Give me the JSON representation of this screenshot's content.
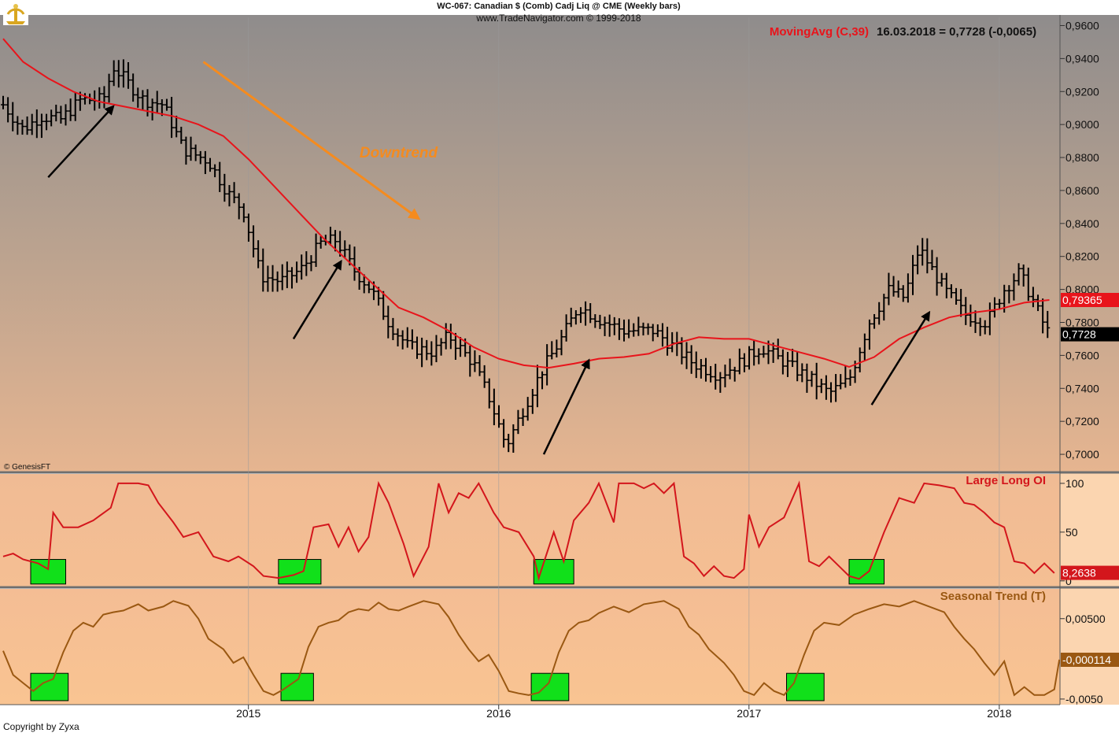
{
  "header": {
    "title": "WC-067:  Canadian $ (Comb) Cadj Liq @ CME  (Weekly bars)",
    "source": "www.TradeNavigator.com © 1999-2018"
  },
  "footer": {
    "copyright": "Copyright by Zyxa",
    "genesis": "© GenesisFT"
  },
  "colors": {
    "price_bars": "#000000",
    "moving_avg": "#e8141b",
    "large_long_oi": "#d3161c",
    "seasonal": "#9a5812",
    "highlight": "#11e01a",
    "arrows_black": "#000000",
    "downtrend": "#f58b1e"
  },
  "chart_data": [
    {
      "type": "ohlc-weekly",
      "panel": "price",
      "title": "MovingAvg (C,39)",
      "quote": "16.03.2018 = 0,7728 (-0,0065)",
      "ylim": [
        0.69,
        0.965
      ],
      "yticks": [
        "0,9600",
        "0,9400",
        "0,9200",
        "0,9000",
        "0,8800",
        "0,8600",
        "0,8400",
        "0,8200",
        "0,8000",
        "0,7800",
        "0,7600",
        "0,7400",
        "0,7200",
        "0,7000"
      ],
      "ytick_values": [
        0.96,
        0.94,
        0.92,
        0.9,
        0.88,
        0.86,
        0.84,
        0.82,
        0.8,
        0.78,
        0.76,
        0.74,
        0.72,
        0.7
      ],
      "x_labels": [
        "2015",
        "2016",
        "2017",
        "2018"
      ],
      "x_label_dates": [
        2015.0,
        2016.0,
        2017.0,
        2018.0
      ],
      "x_range": [
        2014.02,
        2018.23
      ],
      "last_close_label": "0,7728",
      "ma_label": "0,79365",
      "closes_anchor": [
        [
          2014.02,
          0.912
        ],
        [
          2014.1,
          0.897
        ],
        [
          2014.17,
          0.905
        ],
        [
          2014.25,
          0.903
        ],
        [
          2014.33,
          0.915
        ],
        [
          2014.42,
          0.915
        ],
        [
          2014.46,
          0.935
        ],
        [
          2014.52,
          0.925
        ],
        [
          2014.58,
          0.915
        ],
        [
          2014.66,
          0.912
        ],
        [
          2014.74,
          0.885
        ],
        [
          2014.84,
          0.878
        ],
        [
          2014.92,
          0.858
        ],
        [
          2014.98,
          0.848
        ],
        [
          2015.05,
          0.808
        ],
        [
          2015.13,
          0.805
        ],
        [
          2015.21,
          0.812
        ],
        [
          2015.29,
          0.828
        ],
        [
          2015.35,
          0.83
        ],
        [
          2015.42,
          0.812
        ],
        [
          2015.49,
          0.8
        ],
        [
          2015.56,
          0.78
        ],
        [
          2015.64,
          0.765
        ],
        [
          2015.74,
          0.762
        ],
        [
          2015.8,
          0.772
        ],
        [
          2015.9,
          0.755
        ],
        [
          2015.96,
          0.735
        ],
        [
          2016.03,
          0.705
        ],
        [
          2016.1,
          0.728
        ],
        [
          2016.17,
          0.75
        ],
        [
          2016.25,
          0.77
        ],
        [
          2016.32,
          0.79
        ],
        [
          2016.4,
          0.782
        ],
        [
          2016.5,
          0.775
        ],
        [
          2016.62,
          0.775
        ],
        [
          2016.7,
          0.765
        ],
        [
          2016.78,
          0.755
        ],
        [
          2016.88,
          0.748
        ],
        [
          2016.96,
          0.755
        ],
        [
          2017.05,
          0.765
        ],
        [
          2017.15,
          0.755
        ],
        [
          2017.25,
          0.745
        ],
        [
          2017.32,
          0.737
        ],
        [
          2017.4,
          0.745
        ],
        [
          2017.48,
          0.78
        ],
        [
          2017.56,
          0.8
        ],
        [
          2017.62,
          0.795
        ],
        [
          2017.68,
          0.825
        ],
        [
          2017.78,
          0.8
        ],
        [
          2017.86,
          0.785
        ],
        [
          2017.95,
          0.78
        ],
        [
          2018.02,
          0.8
        ],
        [
          2018.08,
          0.81
        ],
        [
          2018.13,
          0.795
        ],
        [
          2018.18,
          0.778
        ],
        [
          2018.2,
          0.7728
        ]
      ],
      "moving_average": [
        [
          2014.02,
          0.952
        ],
        [
          2014.1,
          0.938
        ],
        [
          2014.2,
          0.928
        ],
        [
          2014.3,
          0.92
        ],
        [
          2014.4,
          0.914
        ],
        [
          2014.5,
          0.911
        ],
        [
          2014.6,
          0.908
        ],
        [
          2014.7,
          0.905
        ],
        [
          2014.8,
          0.9
        ],
        [
          2014.9,
          0.893
        ],
        [
          2015.0,
          0.879
        ],
        [
          2015.1,
          0.863
        ],
        [
          2015.2,
          0.847
        ],
        [
          2015.3,
          0.831
        ],
        [
          2015.4,
          0.817
        ],
        [
          2015.5,
          0.803
        ],
        [
          2015.6,
          0.789
        ],
        [
          2015.7,
          0.783
        ],
        [
          2015.8,
          0.775
        ],
        [
          2015.9,
          0.765
        ],
        [
          2016.0,
          0.758
        ],
        [
          2016.1,
          0.754
        ],
        [
          2016.2,
          0.7525
        ],
        [
          2016.3,
          0.755
        ],
        [
          2016.4,
          0.758
        ],
        [
          2016.5,
          0.759
        ],
        [
          2016.6,
          0.761
        ],
        [
          2016.7,
          0.767
        ],
        [
          2016.8,
          0.771
        ],
        [
          2016.9,
          0.77
        ],
        [
          2017.0,
          0.77
        ],
        [
          2017.1,
          0.766
        ],
        [
          2017.2,
          0.762
        ],
        [
          2017.3,
          0.758
        ],
        [
          2017.4,
          0.753
        ],
        [
          2017.5,
          0.759
        ],
        [
          2017.6,
          0.77
        ],
        [
          2017.7,
          0.777
        ],
        [
          2017.8,
          0.783
        ],
        [
          2017.9,
          0.786
        ],
        [
          2018.0,
          0.788
        ],
        [
          2018.1,
          0.792
        ],
        [
          2018.2,
          0.7936
        ]
      ],
      "annotations": [
        {
          "text": "Downtrend",
          "color": "downtrend",
          "x": 2015.6,
          "y": 0.88
        },
        {
          "type": "arrow",
          "color": "downtrend",
          "from": [
            2014.82,
            0.938
          ],
          "to": [
            2015.68,
            0.843
          ]
        },
        {
          "type": "arrow",
          "color": "arrows_black",
          "from": [
            2014.2,
            0.868
          ],
          "to": [
            2014.46,
            0.911
          ]
        },
        {
          "type": "arrow",
          "color": "arrows_black",
          "from": [
            2015.18,
            0.77
          ],
          "to": [
            2015.37,
            0.817
          ]
        },
        {
          "type": "arrow",
          "color": "arrows_black",
          "from": [
            2016.18,
            0.7
          ],
          "to": [
            2016.36,
            0.757
          ]
        },
        {
          "type": "arrow",
          "color": "arrows_black",
          "from": [
            2017.49,
            0.73
          ],
          "to": [
            2017.72,
            0.786
          ]
        }
      ]
    },
    {
      "type": "line",
      "panel": "large_long_oi",
      "title": "Large Long OI",
      "ylim": [
        -5,
        108
      ],
      "yticks": [
        "100",
        "50",
        "0"
      ],
      "ytick_values": [
        100,
        50,
        0
      ],
      "last_value_label": "8,2638",
      "series": [
        [
          2014.02,
          25
        ],
        [
          2014.06,
          28
        ],
        [
          2014.1,
          22
        ],
        [
          2014.16,
          18
        ],
        [
          2014.2,
          12
        ],
        [
          2014.22,
          70
        ],
        [
          2014.26,
          55
        ],
        [
          2014.32,
          55
        ],
        [
          2014.38,
          62
        ],
        [
          2014.45,
          75
        ],
        [
          2014.48,
          100
        ],
        [
          2014.56,
          100
        ],
        [
          2014.6,
          98
        ],
        [
          2014.64,
          80
        ],
        [
          2014.7,
          60
        ],
        [
          2014.74,
          45
        ],
        [
          2014.8,
          50
        ],
        [
          2014.86,
          25
        ],
        [
          2014.92,
          20
        ],
        [
          2014.96,
          25
        ],
        [
          2015.02,
          15
        ],
        [
          2015.06,
          5
        ],
        [
          2015.12,
          3
        ],
        [
          2015.18,
          6
        ],
        [
          2015.22,
          10
        ],
        [
          2015.26,
          55
        ],
        [
          2015.32,
          58
        ],
        [
          2015.36,
          35
        ],
        [
          2015.4,
          55
        ],
        [
          2015.44,
          30
        ],
        [
          2015.48,
          45
        ],
        [
          2015.52,
          100
        ],
        [
          2015.56,
          80
        ],
        [
          2015.62,
          38
        ],
        [
          2015.66,
          5
        ],
        [
          2015.72,
          35
        ],
        [
          2015.76,
          100
        ],
        [
          2015.8,
          70
        ],
        [
          2015.84,
          90
        ],
        [
          2015.88,
          85
        ],
        [
          2015.92,
          100
        ],
        [
          2015.98,
          70
        ],
        [
          2016.02,
          55
        ],
        [
          2016.08,
          50
        ],
        [
          2016.14,
          25
        ],
        [
          2016.16,
          3
        ],
        [
          2016.22,
          50
        ],
        [
          2016.26,
          20
        ],
        [
          2016.3,
          62
        ],
        [
          2016.36,
          80
        ],
        [
          2016.4,
          100
        ],
        [
          2016.46,
          60
        ],
        [
          2016.48,
          100
        ],
        [
          2016.54,
          100
        ],
        [
          2016.58,
          95
        ],
        [
          2016.62,
          100
        ],
        [
          2016.66,
          90
        ],
        [
          2016.7,
          100
        ],
        [
          2016.74,
          25
        ],
        [
          2016.78,
          18
        ],
        [
          2016.82,
          5
        ],
        [
          2016.86,
          15
        ],
        [
          2016.9,
          5
        ],
        [
          2016.94,
          3
        ],
        [
          2016.98,
          12
        ],
        [
          2017.0,
          68
        ],
        [
          2017.04,
          35
        ],
        [
          2017.08,
          55
        ],
        [
          2017.14,
          65
        ],
        [
          2017.2,
          100
        ],
        [
          2017.24,
          20
        ],
        [
          2017.28,
          15
        ],
        [
          2017.32,
          25
        ],
        [
          2017.36,
          15
        ],
        [
          2017.4,
          5
        ],
        [
          2017.44,
          2
        ],
        [
          2017.48,
          10
        ],
        [
          2017.54,
          50
        ],
        [
          2017.6,
          85
        ],
        [
          2017.66,
          80
        ],
        [
          2017.7,
          100
        ],
        [
          2017.76,
          98
        ],
        [
          2017.82,
          95
        ],
        [
          2017.86,
          80
        ],
        [
          2017.9,
          78
        ],
        [
          2017.94,
          70
        ],
        [
          2017.98,
          60
        ],
        [
          2018.02,
          55
        ],
        [
          2018.06,
          20
        ],
        [
          2018.1,
          18
        ],
        [
          2018.14,
          8
        ],
        [
          2018.18,
          18
        ],
        [
          2018.22,
          8
        ]
      ],
      "highlights": [
        [
          2014.13,
          2014.27
        ],
        [
          2015.12,
          2015.29
        ],
        [
          2016.14,
          2016.3
        ],
        [
          2017.4,
          2017.54
        ]
      ]
    },
    {
      "type": "line",
      "panel": "seasonal",
      "title": "Seasonal Trend (T)",
      "ylim": [
        -0.0055,
        0.0085
      ],
      "yticks": [
        "0,00500",
        "-0,0050"
      ],
      "ytick_values": [
        0.005,
        -0.005
      ],
      "last_value_label": "-0,000114",
      "series": [
        [
          2014.02,
          0.001
        ],
        [
          2014.06,
          -0.002
        ],
        [
          2014.1,
          -0.003
        ],
        [
          2014.14,
          -0.004
        ],
        [
          2014.18,
          -0.003
        ],
        [
          2014.22,
          -0.0025
        ],
        [
          2014.26,
          0.0008
        ],
        [
          2014.3,
          0.0035
        ],
        [
          2014.34,
          0.0045
        ],
        [
          2014.38,
          0.004
        ],
        [
          2014.42,
          0.0055
        ],
        [
          2014.46,
          0.0058
        ],
        [
          2014.5,
          0.006
        ],
        [
          2014.56,
          0.0068
        ],
        [
          2014.6,
          0.006
        ],
        [
          2014.66,
          0.0065
        ],
        [
          2014.7,
          0.0072
        ],
        [
          2014.76,
          0.0066
        ],
        [
          2014.8,
          0.005
        ],
        [
          2014.84,
          0.0025
        ],
        [
          2014.9,
          0.0012
        ],
        [
          2014.94,
          -0.0005
        ],
        [
          2014.98,
          0.0002
        ],
        [
          2015.02,
          -0.002
        ],
        [
          2015.06,
          -0.004
        ],
        [
          2015.1,
          -0.0045
        ],
        [
          2015.14,
          -0.0038
        ],
        [
          2015.2,
          -0.0025
        ],
        [
          2015.24,
          0.0015
        ],
        [
          2015.28,
          0.004
        ],
        [
          2015.32,
          0.0045
        ],
        [
          2015.36,
          0.0048
        ],
        [
          2015.4,
          0.0058
        ],
        [
          2015.44,
          0.0062
        ],
        [
          2015.48,
          0.006
        ],
        [
          2015.52,
          0.007
        ],
        [
          2015.56,
          0.0062
        ],
        [
          2015.6,
          0.006
        ],
        [
          2015.64,
          0.0065
        ],
        [
          2015.7,
          0.0072
        ],
        [
          2015.76,
          0.0068
        ],
        [
          2015.8,
          0.0052
        ],
        [
          2015.84,
          0.003
        ],
        [
          2015.88,
          0.0012
        ],
        [
          2015.92,
          -0.0003
        ],
        [
          2015.96,
          0.0005
        ],
        [
          2016.0,
          -0.0015
        ],
        [
          2016.04,
          -0.004
        ],
        [
          2016.08,
          -0.0043
        ],
        [
          2016.12,
          -0.0045
        ],
        [
          2016.16,
          -0.0042
        ],
        [
          2016.2,
          -0.003
        ],
        [
          2016.24,
          0.0008
        ],
        [
          2016.28,
          0.0035
        ],
        [
          2016.32,
          0.0045
        ],
        [
          2016.36,
          0.0048
        ],
        [
          2016.4,
          0.0057
        ],
        [
          2016.46,
          0.0065
        ],
        [
          2016.52,
          0.0058
        ],
        [
          2016.58,
          0.0068
        ],
        [
          2016.66,
          0.0072
        ],
        [
          2016.72,
          0.0062
        ],
        [
          2016.76,
          0.004
        ],
        [
          2016.8,
          0.003
        ],
        [
          2016.84,
          0.0012
        ],
        [
          2016.9,
          -0.0005
        ],
        [
          2016.94,
          -0.002
        ],
        [
          2016.98,
          -0.004
        ],
        [
          2017.02,
          -0.0045
        ],
        [
          2017.06,
          -0.003
        ],
        [
          2017.1,
          -0.004
        ],
        [
          2017.14,
          -0.0045
        ],
        [
          2017.18,
          -0.003
        ],
        [
          2017.22,
          0.0005
        ],
        [
          2017.26,
          0.0035
        ],
        [
          2017.3,
          0.0045
        ],
        [
          2017.36,
          0.0042
        ],
        [
          2017.42,
          0.0055
        ],
        [
          2017.48,
          0.0062
        ],
        [
          2017.54,
          0.0068
        ],
        [
          2017.6,
          0.0065
        ],
        [
          2017.66,
          0.0072
        ],
        [
          2017.72,
          0.0065
        ],
        [
          2017.78,
          0.0058
        ],
        [
          2017.82,
          0.004
        ],
        [
          2017.86,
          0.0025
        ],
        [
          2017.9,
          0.0012
        ],
        [
          2017.94,
          -0.0005
        ],
        [
          2017.98,
          -0.002
        ],
        [
          2018.02,
          -0.0003
        ],
        [
          2018.06,
          -0.0045
        ],
        [
          2018.1,
          -0.0035
        ],
        [
          2018.14,
          -0.0045
        ],
        [
          2018.18,
          -0.0045
        ],
        [
          2018.22,
          -0.0038
        ],
        [
          2018.24,
          -0.0001
        ]
      ],
      "highlights": [
        [
          2014.13,
          2014.28
        ],
        [
          2015.13,
          2015.26
        ],
        [
          2016.13,
          2016.28
        ],
        [
          2017.15,
          2017.3
        ]
      ]
    }
  ]
}
